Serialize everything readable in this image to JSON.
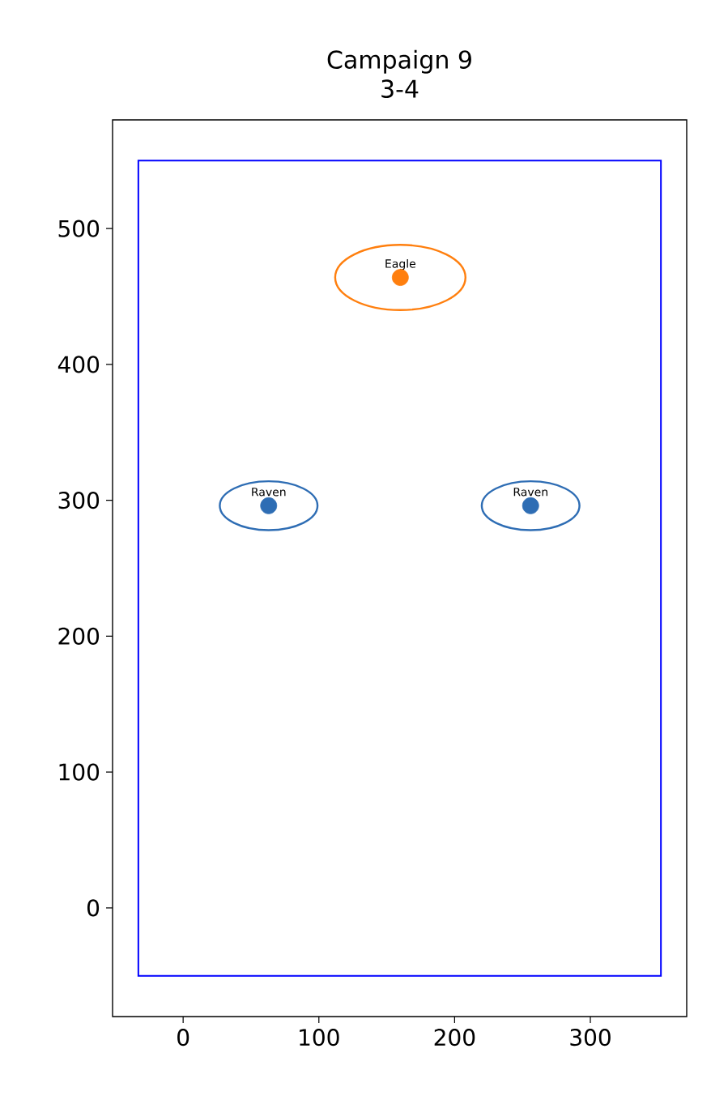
{
  "chart_data": {
    "type": "scatter",
    "title": "Campaign 9",
    "subtitle": "3-4",
    "xlim": [
      -52,
      371
    ],
    "ylim": [
      -80,
      580
    ],
    "xticks": [
      0,
      100,
      200,
      300
    ],
    "yticks": [
      0,
      100,
      200,
      300,
      400,
      500
    ],
    "series": [
      {
        "color": "#2e6db4",
        "x": [
          63,
          256
        ],
        "values": [
          296,
          296
        ]
      },
      {
        "color": "#ff7f0e",
        "x": [
          160
        ],
        "values": [
          464
        ]
      }
    ],
    "annotations": [
      {
        "text": "Raven",
        "x": 63,
        "y": 296
      },
      {
        "text": "Raven",
        "x": 256,
        "y": 296
      },
      {
        "text": "Eagle",
        "x": 160,
        "y": 464
      }
    ]
  }
}
